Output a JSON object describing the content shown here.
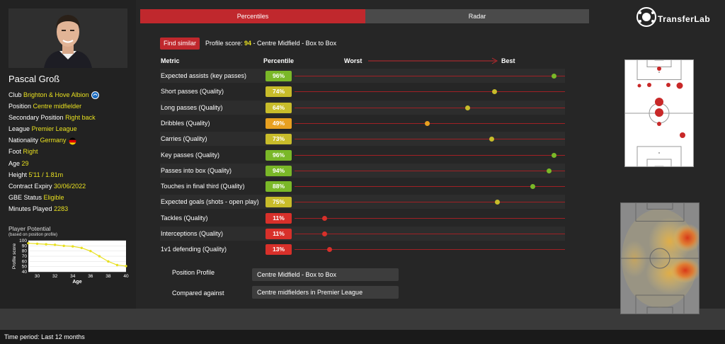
{
  "player": {
    "name": "Pascal Groß",
    "info": [
      {
        "label": "Club",
        "value": "Brighton & Hove Albion",
        "icon": "club-crest-icon"
      },
      {
        "label": "Position",
        "value": "Centre midfielder"
      },
      {
        "label": "Secondary Position",
        "value": "Right back"
      },
      {
        "label": "League",
        "value": "Premier League"
      },
      {
        "label": "Nationality",
        "value": "Germany",
        "icon": "germany-flag-icon"
      },
      {
        "label": "Foot",
        "value": "Right"
      },
      {
        "label": "Age",
        "value": "29"
      },
      {
        "label": "Height",
        "value": "5'11 / 1.81m"
      },
      {
        "label": "Contract Expiry",
        "value": "30/06/2022"
      },
      {
        "label": "GBE Status",
        "value": "Eligible"
      },
      {
        "label": "Minutes Played",
        "value": "2283"
      }
    ]
  },
  "potential": {
    "title": "Player Potential",
    "subtitle": "(based on position profile)",
    "chart_data": {
      "type": "line",
      "title": "Player Potential",
      "xlabel": "Age",
      "ylabel": "Profile score",
      "x": [
        29,
        30,
        31,
        32,
        33,
        34,
        35,
        36,
        37,
        38,
        39,
        40
      ],
      "y": [
        95,
        94,
        93,
        92,
        90,
        89,
        86,
        80,
        70,
        60,
        53,
        51
      ],
      "xlim": [
        29,
        40
      ],
      "ylim": [
        40,
        100
      ],
      "xticks": [
        "30",
        "32",
        "34",
        "36",
        "38",
        "40"
      ],
      "yticks": [
        "100",
        "90",
        "80",
        "70",
        "60",
        "50",
        "40"
      ],
      "color": "#e8e020"
    }
  },
  "tabs": [
    {
      "label": "Percentiles",
      "active": true
    },
    {
      "label": "Radar",
      "active": false
    }
  ],
  "actions": {
    "find_similar": "Find similar"
  },
  "profile_score": {
    "prefix": "Profile score: ",
    "score": "94",
    "suffix": " - Centre Midfield - Box to Box"
  },
  "table_headers": {
    "metric": "Metric",
    "percentile": "Percentile",
    "worst": "Worst",
    "best": "Best"
  },
  "colors": {
    "accent": "#c0282d",
    "highlight": "#e8e020",
    "high": "#7ab828",
    "mid": "#c8bc2a",
    "low": "#e8a020",
    "verylow": "#d8302a"
  },
  "metrics": [
    {
      "label": "Expected assists (key passes)",
      "value": 96,
      "text": "96%"
    },
    {
      "label": "Short passes (Quality)",
      "value": 74,
      "text": "74%"
    },
    {
      "label": "Long passes (Quality)",
      "value": 64,
      "text": "64%"
    },
    {
      "label": "Dribbles (Quality)",
      "value": 49,
      "text": "49%"
    },
    {
      "label": "Carries (Quality)",
      "value": 73,
      "text": "73%"
    },
    {
      "label": "Key passes (Quality)",
      "value": 96,
      "text": "96%"
    },
    {
      "label": "Passes into box (Quality)",
      "value": 94,
      "text": "94%"
    },
    {
      "label": "Touches in final third (Quality)",
      "value": 88,
      "text": "88%"
    },
    {
      "label": "Expected goals (shots - open play)",
      "value": 75,
      "text": "75%"
    },
    {
      "label": "Tackles (Quality)",
      "value": 11,
      "text": "11%"
    },
    {
      "label": "Interceptions (Quality)",
      "value": 11,
      "text": "11%"
    },
    {
      "label": "1v1 defending (Quality)",
      "value": 13,
      "text": "13%"
    }
  ],
  "bottom": {
    "position_profile_label": "Position Profile",
    "position_profile_value": "Centre Midfield - Box to Box",
    "compared_label": "Compared against",
    "compared_value": "Centre midfielders in Premier League"
  },
  "brand": {
    "logo_text": "TransferLab"
  },
  "footer": {
    "time_period": "Time period: Last 12 months"
  }
}
